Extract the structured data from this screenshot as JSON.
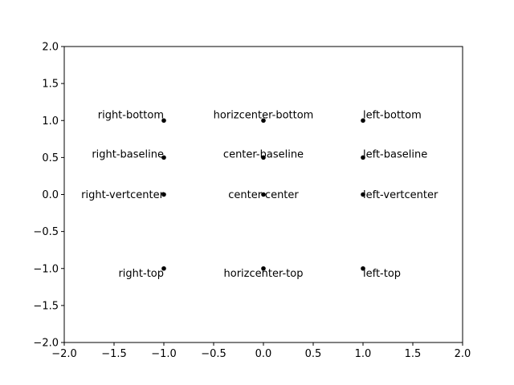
{
  "chart_data": {
    "type": "scatter",
    "xlim": [
      -2.0,
      2.0
    ],
    "ylim": [
      -2.0,
      2.0
    ],
    "xticks": [
      -2.0,
      -1.5,
      -1.0,
      -0.5,
      0.0,
      0.5,
      1.0,
      1.5,
      2.0
    ],
    "yticks": [
      -2.0,
      -1.5,
      -1.0,
      -0.5,
      0.0,
      0.5,
      1.0,
      1.5,
      2.0
    ],
    "xtick_labels": [
      "−2.0",
      "−1.5",
      "−1.0",
      "−0.5",
      "0.0",
      "0.5",
      "1.0",
      "1.5",
      "2.0"
    ],
    "ytick_labels": [
      "−2.0",
      "−1.5",
      "−1.0",
      "−0.5",
      "0.0",
      "0.5",
      "1.0",
      "1.5",
      "2.0"
    ],
    "grid": false,
    "marker_color": "#000000",
    "points": [
      {
        "x": -1.0,
        "y": 1.0,
        "label": "right-bottom",
        "ha": "right",
        "va": "bottom"
      },
      {
        "x": -1.0,
        "y": 0.5,
        "label": "right-baseline",
        "ha": "right",
        "va": "baseline"
      },
      {
        "x": -1.0,
        "y": 0.0,
        "label": "right-vertcenter",
        "ha": "right",
        "va": "center"
      },
      {
        "x": -1.0,
        "y": -1.0,
        "label": "right-top",
        "ha": "right",
        "va": "top"
      },
      {
        "x": 0.0,
        "y": 1.0,
        "label": "horizcenter-bottom",
        "ha": "center",
        "va": "bottom"
      },
      {
        "x": 0.0,
        "y": 0.5,
        "label": "center-baseline",
        "ha": "center",
        "va": "baseline"
      },
      {
        "x": 0.0,
        "y": 0.0,
        "label": "center-center",
        "ha": "center",
        "va": "center"
      },
      {
        "x": 0.0,
        "y": -1.0,
        "label": "horizcenter-top",
        "ha": "center",
        "va": "top"
      },
      {
        "x": 1.0,
        "y": 1.0,
        "label": "left-bottom",
        "ha": "left",
        "va": "bottom"
      },
      {
        "x": 1.0,
        "y": 0.5,
        "label": "left-baseline",
        "ha": "left",
        "va": "baseline"
      },
      {
        "x": 1.0,
        "y": 0.0,
        "label": "left-vertcenter",
        "ha": "left",
        "va": "center"
      },
      {
        "x": 1.0,
        "y": -1.0,
        "label": "left-top",
        "ha": "left",
        "va": "top"
      }
    ]
  }
}
